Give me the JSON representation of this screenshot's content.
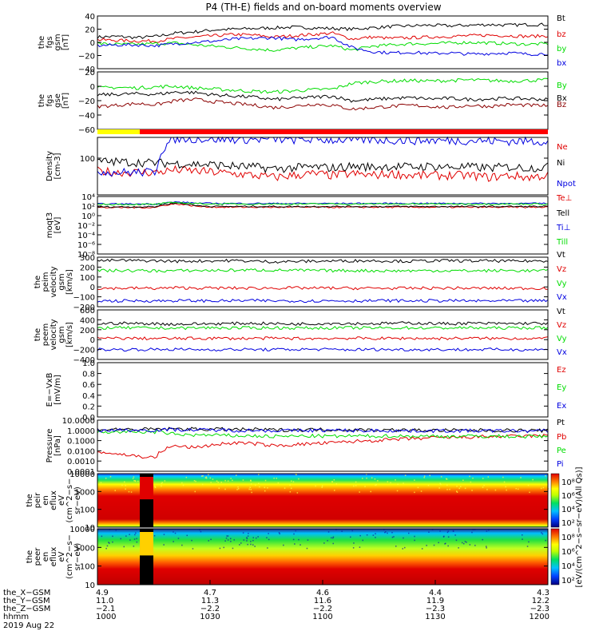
{
  "title": "P4 (TH-E) fields and on-board moments overview",
  "colors": {
    "black": "#000000",
    "red": "#e00000",
    "green": "#00dd00",
    "blue": "#0000e0",
    "darkred": "#8b0000",
    "yellow": "#ffff00",
    "bar_red": "#ff0000"
  },
  "chart_data": [
    {
      "type": "line",
      "panel": "fgs_gsm",
      "ylabel": [
        "the",
        "fgs",
        "gsm",
        "[nT]"
      ],
      "yticks": [
        "40",
        "20",
        "0",
        "−20",
        "−40"
      ],
      "ylim": [
        -40,
        40
      ],
      "series": [
        {
          "name": "Bt",
          "color": "black",
          "values": [
            8,
            9,
            7,
            9,
            14,
            16,
            19,
            20,
            21,
            22,
            23,
            22,
            21,
            20,
            22,
            24,
            25,
            26,
            25,
            26,
            27,
            26,
            27,
            27
          ]
        },
        {
          "name": "bz",
          "color": "red",
          "values": [
            4,
            3,
            2,
            2,
            6,
            8,
            10,
            12,
            11,
            8,
            10,
            12,
            14,
            5,
            8,
            6,
            7,
            8,
            9,
            10,
            11,
            10,
            9,
            10
          ]
        },
        {
          "name": "by",
          "color": "green",
          "values": [
            -2,
            -3,
            -3,
            -2,
            -1,
            -4,
            -6,
            -8,
            -10,
            -12,
            -9,
            -7,
            -5,
            -12,
            -6,
            -4,
            -2,
            -2,
            -1,
            0,
            -1,
            -2,
            -3,
            -2
          ]
        },
        {
          "name": "bx",
          "color": "blue",
          "values": [
            -5,
            -4,
            -4,
            -5,
            -2,
            0,
            2,
            5,
            6,
            7,
            4,
            6,
            8,
            -8,
            -14,
            -16,
            -15,
            -17,
            -16,
            -18,
            -17,
            -16,
            -18,
            -17
          ]
        }
      ]
    },
    {
      "type": "line",
      "panel": "fgs_gse",
      "ylabel": [
        "the",
        "fgs",
        "gse",
        "[nT]"
      ],
      "yticks": [
        "20",
        "0",
        "−20",
        "−40",
        "−60"
      ],
      "ylim": [
        -70,
        30
      ],
      "series": [
        {
          "name": "By",
          "color": "green",
          "values": [
            2,
            3,
            2,
            4,
            5,
            2,
            0,
            -2,
            -4,
            -5,
            -3,
            -1,
            0,
            10,
            13,
            14,
            15,
            14,
            15,
            16,
            15,
            14,
            15,
            16
          ]
        },
        {
          "name": "Bx",
          "color": "black",
          "values": [
            -10,
            -9,
            -8,
            -9,
            -5,
            -6,
            -10,
            -12,
            -14,
            -18,
            -16,
            -14,
            -12,
            -20,
            -18,
            -16,
            -15,
            -17,
            -16,
            -18,
            -17,
            -16,
            -17,
            -18
          ]
        },
        {
          "name": "Bz",
          "color": "darkred",
          "values": [
            -30,
            -28,
            -25,
            -27,
            -20,
            -18,
            -22,
            -25,
            -28,
            -32,
            -30,
            -26,
            -28,
            -35,
            -32,
            -30,
            -28,
            -30,
            -32,
            -28,
            -30,
            -27,
            -28,
            -29
          ]
        }
      ]
    },
    {
      "type": "line",
      "panel": "density",
      "ylabel": [
        "Density",
        "[cm-3]"
      ],
      "yticks": [
        "100"
      ],
      "ylim": [
        1,
        200
      ],
      "yscale": "log",
      "series": [
        {
          "name": "Ne",
          "color": "red",
          "values": [
            9,
            8,
            8,
            8,
            10,
            9,
            8,
            7,
            6,
            5,
            6,
            7,
            6,
            7,
            6,
            7,
            6,
            6,
            6,
            6,
            5,
            6,
            5,
            6
          ]
        },
        {
          "name": "Ni",
          "color": "black",
          "values": [
            22,
            21,
            20,
            19,
            18,
            17,
            16,
            14,
            13,
            11,
            12,
            13,
            12,
            14,
            13,
            14,
            13,
            14,
            13,
            13,
            12,
            13,
            12,
            13
          ]
        },
        {
          "name": "Npot",
          "color": "blue",
          "values": [
            9,
            8,
            8,
            8,
            180,
            175,
            170,
            168,
            165,
            170,
            160,
            165,
            158,
            162,
            160,
            155,
            150,
            152,
            148,
            150,
            145,
            140,
            142,
            140
          ]
        }
      ],
      "legend_only": [
        "Ne",
        "Ni",
        "Npot"
      ]
    },
    {
      "type": "line",
      "panel": "temperature",
      "ylabel": [
        "moqt3",
        "[eV]"
      ],
      "yticks": [
        "10⁴",
        "10²",
        "10⁰",
        "10⁻²",
        "10⁻⁴",
        "10⁻⁶",
        "10⁻⁸"
      ],
      "ylim": [
        1e-09,
        100000.0
      ],
      "yscale": "log",
      "series": [
        {
          "name": "Te⊥",
          "color": "red",
          "values": [
            200,
            200,
            210,
            210,
            1500,
            400,
            260,
            250,
            250,
            240,
            250,
            250,
            245,
            250,
            250,
            245,
            250,
            250,
            250,
            245,
            250,
            250,
            245,
            250
          ]
        },
        {
          "name": "Tell",
          "color": "black",
          "values": [
            300,
            300,
            310,
            310,
            2500,
            600,
            380,
            370,
            370,
            360,
            370,
            370,
            365,
            370,
            370,
            365,
            370,
            370,
            370,
            365,
            370,
            370,
            365,
            370
          ]
        },
        {
          "name": "Ti⊥",
          "color": "blue",
          "values": [
            1500,
            1500,
            1500,
            1500,
            4500,
            2500,
            2000,
            2000,
            2000,
            1950,
            2000,
            2000,
            1980,
            2000,
            2000,
            1990,
            2000,
            2000,
            2000,
            1990,
            2000,
            2000,
            1990,
            2000
          ]
        },
        {
          "name": "Till",
          "color": "green",
          "values": [
            1200,
            1200,
            1200,
            1200,
            3500,
            1800,
            1500,
            1500,
            1500,
            1450,
            1500,
            1500,
            1480,
            1500,
            1500,
            1490,
            1500,
            1500,
            1500,
            1490,
            1500,
            1500,
            1490,
            1500
          ]
        }
      ]
    },
    {
      "type": "line",
      "panel": "peim_velocity",
      "ylabel": [
        "the",
        "peim",
        "velocity",
        "gsm",
        "[km/s]"
      ],
      "yticks": [
        "300",
        "200",
        "100",
        "0",
        "−100",
        "−200"
      ],
      "ylim": [
        -250,
        300
      ],
      "series": [
        {
          "name": "Vt",
          "color": "black",
          "values": [
            260,
            265,
            262,
            260,
            255,
            258,
            260,
            262,
            255,
            250,
            252,
            256,
            258,
            260,
            262,
            258,
            255,
            260,
            262,
            258,
            260,
            256,
            258,
            260
          ]
        },
        {
          "name": "Vz",
          "color": "red",
          "values": [
            -45,
            -45,
            -44,
            -46,
            -40,
            -42,
            -44,
            -43,
            -45,
            -42,
            -41,
            -44,
            -43,
            -45,
            -44,
            -46,
            -45,
            -44,
            -43,
            -45,
            -44,
            -46,
            -45,
            -44
          ]
        },
        {
          "name": "Vy",
          "color": "green",
          "values": [
            150,
            152,
            150,
            148,
            150,
            152,
            153,
            155,
            158,
            156,
            154,
            152,
            150,
            152,
            150,
            148,
            150,
            151,
            150,
            149,
            150,
            152,
            150,
            149
          ]
        },
        {
          "name": "Vx",
          "color": "blue",
          "values": [
            -185,
            -186,
            -184,
            -185,
            -182,
            -184,
            -186,
            -183,
            -182,
            -185,
            -184,
            -186,
            -183,
            -185,
            -184,
            -182,
            -185,
            -184,
            -183,
            -185,
            -186,
            -184,
            -185,
            -184
          ]
        }
      ]
    },
    {
      "type": "line",
      "panel": "peem_velocity",
      "ylabel": [
        "the",
        "peem",
        "velocity",
        "gsm",
        "[km/s]"
      ],
      "yticks": [
        "600",
        "400",
        "200",
        "0",
        "−200",
        "−400"
      ],
      "ylim": [
        -420,
        620
      ],
      "series": [
        {
          "name": "Vt",
          "color": "black",
          "values": [
            330,
            340,
            335,
            330,
            320,
            325,
            330,
            335,
            340,
            330,
            325,
            330,
            340,
            335,
            330,
            340,
            345,
            335,
            330,
            340,
            335,
            330,
            340,
            335
          ]
        },
        {
          "name": "Vz",
          "color": "red",
          "values": [
            20,
            25,
            22,
            20,
            18,
            22,
            25,
            20,
            22,
            24,
            20,
            18,
            22,
            25,
            20,
            22,
            24,
            20,
            22,
            25,
            20,
            22,
            24,
            22
          ]
        },
        {
          "name": "Vy",
          "color": "green",
          "values": [
            240,
            245,
            242,
            240,
            238,
            242,
            245,
            240,
            242,
            244,
            240,
            238,
            242,
            245,
            240,
            242,
            244,
            240,
            242,
            245,
            240,
            242,
            244,
            242
          ]
        },
        {
          "name": "Vx",
          "color": "blue",
          "values": [
            -210,
            -215,
            -212,
            -210,
            -208,
            -212,
            -215,
            -210,
            -212,
            -214,
            -210,
            -208,
            -212,
            -215,
            -210,
            -212,
            -214,
            -210,
            -212,
            -215,
            -210,
            -212,
            -214,
            -212
          ]
        }
      ]
    },
    {
      "type": "line",
      "panel": "efield",
      "ylabel": [
        "E=−VxB",
        "[mV/m]"
      ],
      "yticks": [
        "1.0",
        "0.8",
        "0.6",
        "0.4",
        "0.2",
        "0.0"
      ],
      "ylim": [
        0,
        1
      ],
      "series": [
        {
          "name": "Ez",
          "color": "red",
          "values": []
        },
        {
          "name": "Ey",
          "color": "green",
          "values": []
        },
        {
          "name": "Ex",
          "color": "blue",
          "values": []
        }
      ]
    },
    {
      "type": "line",
      "panel": "pressure",
      "ylabel": [
        "Pressure",
        "[nPa]"
      ],
      "yticks": [
        "10.0000",
        "1.0000",
        "0.1000",
        "0.0100",
        "0.0010",
        "0.0001"
      ],
      "ylim": [
        0.0001,
        10
      ],
      "yscale": "log",
      "series": [
        {
          "name": "Pt",
          "color": "black",
          "values": [
            1.2,
            1.3,
            1.2,
            1.3,
            1.4,
            1.3,
            1.3,
            1.2,
            1.2,
            1.1,
            1.1,
            1.2,
            1.2,
            1.1,
            1.1,
            1.1,
            1.0,
            1.0,
            1.0,
            1.0,
            1.0,
            1.0,
            0.95,
            0.95
          ]
        },
        {
          "name": "Pb",
          "color": "red",
          "values": [
            0.008,
            0.005,
            0.003,
            0.002,
            0.03,
            0.02,
            0.04,
            0.06,
            0.05,
            0.03,
            0.04,
            0.05,
            0.06,
            0.08,
            0.1,
            0.12,
            0.15,
            0.18,
            0.2,
            0.22,
            0.25,
            0.25,
            0.28,
            0.3
          ]
        },
        {
          "name": "Pe",
          "color": "green",
          "values": [
            0.7,
            0.7,
            0.7,
            0.7,
            0.4,
            0.35,
            0.33,
            0.3,
            0.28,
            0.25,
            0.27,
            0.28,
            0.26,
            0.28,
            0.27,
            0.28,
            0.27,
            0.27,
            0.26,
            0.27,
            0.26,
            0.26,
            0.25,
            0.26
          ]
        },
        {
          "name": "Pi",
          "color": "blue",
          "values": [
            1.0,
            1.1,
            1.0,
            1.1,
            1.2,
            1.1,
            1.1,
            1.0,
            1.0,
            0.95,
            0.95,
            1.0,
            1.0,
            0.95,
            0.95,
            0.95,
            0.9,
            0.9,
            0.9,
            0.9,
            0.9,
            0.9,
            0.88,
            0.88
          ]
        }
      ]
    },
    {
      "type": "heatmap",
      "panel": "peir_eflux",
      "ylabel": [
        "the",
        "peir",
        "en",
        "eflux",
        "eV",
        "(cm^2−s−",
        "sr−eV)"
      ],
      "yticks": [
        "10000",
        "1000",
        "100",
        "10"
      ],
      "ylim": [
        5,
        25000
      ],
      "yscale": "log"
    },
    {
      "type": "heatmap",
      "panel": "peer_eflux",
      "ylabel": [
        "the",
        "peer",
        "en",
        "eflux",
        "eV",
        "(cm^2−s−",
        "sr−eV)"
      ],
      "yticks": [
        "10000",
        "1000",
        "100",
        "10"
      ],
      "ylim": [
        5,
        25000
      ],
      "yscale": "log"
    }
  ],
  "colorbar": {
    "tick_labels": [
      "10⁸",
      "10⁶",
      "10⁴",
      "10²"
    ],
    "tick_labels_2": [
      "10⁸",
      "10⁶",
      "10⁴",
      "10²"
    ],
    "label": "[eV/(cm^2−s−sr−eV)(All Qs)]"
  },
  "xaxis": {
    "row_labels": [
      "the_X−GSM",
      "the_Y−GSM",
      "the_Z−GSM",
      "hhmm",
      "2019 Aug 22"
    ],
    "ticks": [
      {
        "x": "4.9",
        "y": "11.0",
        "z": "−2.1",
        "hhmm": "1000"
      },
      {
        "x": "4.7",
        "y": "11.3",
        "z": "−2.2",
        "hhmm": "1030"
      },
      {
        "x": "4.6",
        "y": "11.6",
        "z": "−2.2",
        "hhmm": "1100"
      },
      {
        "x": "4.4",
        "y": "11.9",
        "z": "−2.3",
        "hhmm": "1130"
      },
      {
        "x": "4.3",
        "y": "12.2",
        "z": "−2.3",
        "hhmm": "1200"
      }
    ]
  }
}
